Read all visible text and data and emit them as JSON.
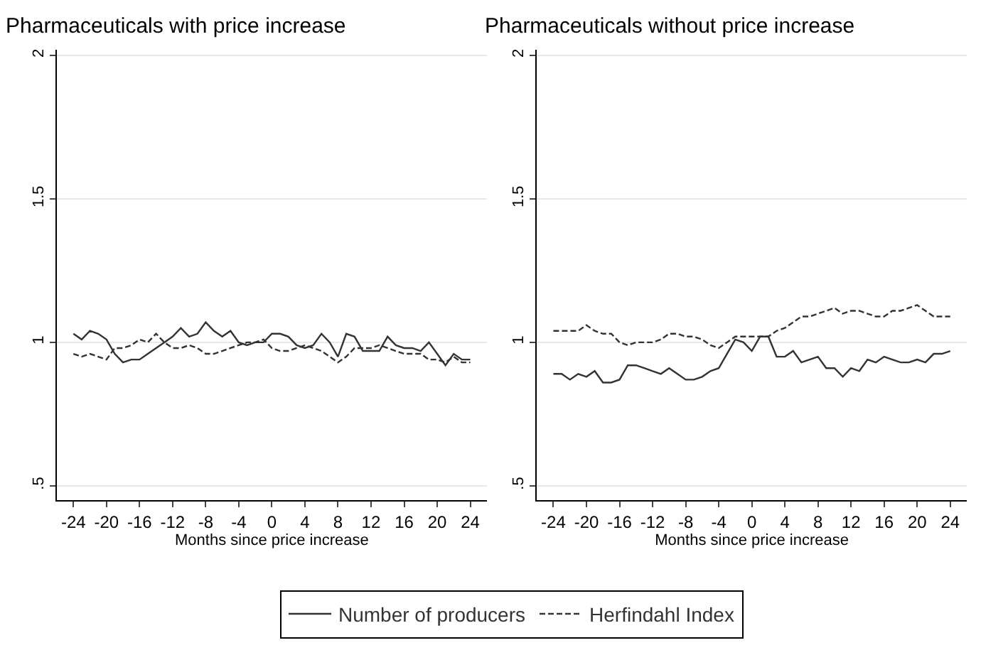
{
  "chart_data": [
    {
      "type": "line",
      "title": "Pharmaceuticals with price increase",
      "xlabel": "Months since price increase",
      "x": [
        -24,
        -23,
        -22,
        -21,
        -20,
        -19,
        -18,
        -17,
        -16,
        -15,
        -14,
        -13,
        -12,
        -11,
        -10,
        -9,
        -8,
        -7,
        -6,
        -5,
        -4,
        -3,
        -2,
        -1,
        0,
        1,
        2,
        3,
        4,
        5,
        6,
        7,
        8,
        9,
        10,
        11,
        12,
        13,
        14,
        15,
        16,
        17,
        18,
        19,
        20,
        21,
        22,
        23,
        24
      ],
      "series": [
        {
          "name": "Number of producers",
          "color": "#333333",
          "line_style": "solid",
          "values": [
            1.03,
            1.01,
            1.04,
            1.03,
            1.01,
            0.96,
            0.93,
            0.94,
            0.94,
            0.96,
            0.98,
            1.0,
            1.02,
            1.05,
            1.02,
            1.03,
            1.07,
            1.04,
            1.02,
            1.04,
            1.0,
            0.99,
            1.0,
            1.0,
            1.03,
            1.03,
            1.02,
            0.99,
            0.98,
            0.99,
            1.03,
            1.0,
            0.95,
            1.03,
            1.02,
            0.97,
            0.97,
            0.97,
            1.02,
            0.99,
            0.98,
            0.98,
            0.97,
            1.0,
            0.96,
            0.92,
            0.96,
            0.94,
            0.94
          ]
        },
        {
          "name": "Herfindahl Index",
          "color": "#333333",
          "line_style": "dashed",
          "values": [
            0.96,
            0.95,
            0.96,
            0.95,
            0.94,
            0.98,
            0.98,
            0.99,
            1.01,
            1.0,
            1.03,
            1.0,
            0.98,
            0.98,
            0.99,
            0.98,
            0.96,
            0.96,
            0.97,
            0.98,
            0.99,
            1.0,
            1.0,
            1.01,
            0.98,
            0.97,
            0.97,
            0.98,
            0.99,
            0.98,
            0.97,
            0.95,
            0.93,
            0.95,
            0.98,
            0.98,
            0.98,
            0.99,
            0.98,
            0.97,
            0.96,
            0.96,
            0.96,
            0.94,
            0.94,
            0.93,
            0.95,
            0.93,
            0.93
          ]
        }
      ],
      "xlim": [
        -26,
        26
      ],
      "xticks": [
        -24,
        -20,
        -16,
        -12,
        -8,
        -4,
        0,
        4,
        8,
        12,
        16,
        20,
        24
      ],
      "ylim": [
        0.45,
        2.02
      ],
      "yticks": [
        {
          "value": 0.5,
          "label": ".5"
        },
        1,
        1.5,
        2
      ],
      "grid": "y",
      "legend": "bottom",
      "marker": "none"
    },
    {
      "type": "line",
      "title": "Pharmaceuticals without price increase",
      "xlabel": "Months since price increase",
      "x": [
        -24,
        -23,
        -22,
        -21,
        -20,
        -19,
        -18,
        -17,
        -16,
        -15,
        -14,
        -13,
        -12,
        -11,
        -10,
        -9,
        -8,
        -7,
        -6,
        -5,
        -4,
        -3,
        -2,
        -1,
        0,
        1,
        2,
        3,
        4,
        5,
        6,
        7,
        8,
        9,
        10,
        11,
        12,
        13,
        14,
        15,
        16,
        17,
        18,
        19,
        20,
        21,
        22,
        23,
        24
      ],
      "series": [
        {
          "color": "#333333",
          "line_style": "solid",
          "values": [
            0.89,
            0.89,
            0.87,
            0.89,
            0.88,
            0.9,
            0.86,
            0.86,
            0.87,
            0.92,
            0.92,
            0.91,
            0.9,
            0.89,
            0.91,
            0.89,
            0.87,
            0.87,
            0.88,
            0.9,
            0.91,
            0.96,
            1.01,
            1.0,
            0.97,
            1.02,
            1.02,
            0.95,
            0.95,
            0.97,
            0.93,
            0.94,
            0.95,
            0.91,
            0.91,
            0.88,
            0.91,
            0.9,
            0.94,
            0.93,
            0.95,
            0.94,
            0.93,
            0.93,
            0.94,
            0.93,
            0.96,
            0.96,
            0.97
          ]
        },
        {
          "color": "#333333",
          "line_style": "dashed",
          "values": [
            1.04,
            1.04,
            1.04,
            1.04,
            1.06,
            1.04,
            1.03,
            1.03,
            1.0,
            0.99,
            1.0,
            1.0,
            1.0,
            1.01,
            1.03,
            1.03,
            1.02,
            1.02,
            1.01,
            0.99,
            0.98,
            1.0,
            1.02,
            1.02,
            1.02,
            1.02,
            1.02,
            1.04,
            1.05,
            1.07,
            1.09,
            1.09,
            1.1,
            1.11,
            1.12,
            1.1,
            1.11,
            1.11,
            1.1,
            1.09,
            1.09,
            1.11,
            1.11,
            1.12,
            1.13,
            1.11,
            1.09,
            1.09,
            1.09
          ]
        }
      ],
      "xlim": [
        -26,
        26
      ],
      "xticks": [
        -24,
        -20,
        -16,
        -12,
        -8,
        -4,
        0,
        4,
        8,
        12,
        16,
        20,
        24
      ],
      "ylim": [
        0.45,
        2.02
      ],
      "yticks": [
        {
          "value": 0.5,
          "label": ".5"
        },
        1,
        1.5,
        2
      ],
      "grid": "y",
      "marker": "none"
    }
  ]
}
